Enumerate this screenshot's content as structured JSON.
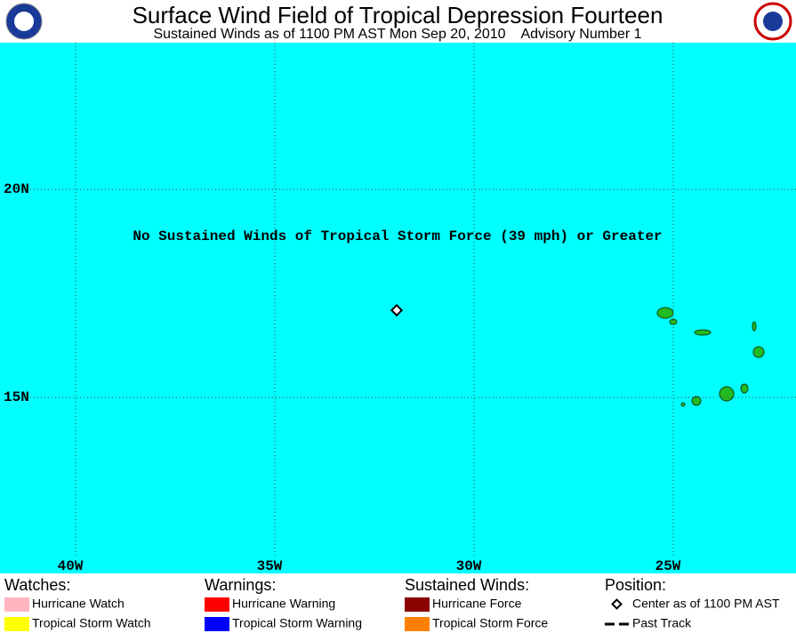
{
  "header": {
    "title": "Surface Wind Field of Tropical Depression Fourteen",
    "subtitle": "Sustained Winds as of 1100 PM AST Mon Sep 20, 2010    Advisory Number 1"
  },
  "map": {
    "notice": "No Sustained Winds of Tropical Storm Force (39 mph) or Greater",
    "lat_labels": [
      "20N",
      "15N"
    ],
    "lon_labels": [
      "40W",
      "35W",
      "30W",
      "25W"
    ],
    "ocean_color": "#00ffff",
    "land_color": "#22bb22"
  },
  "legend": [
    {
      "title": "Watches:",
      "items": [
        {
          "label": "Hurricane Watch",
          "color": "#ffb6c1"
        },
        {
          "label": "Tropical Storm Watch",
          "color": "#ffff00"
        }
      ]
    },
    {
      "title": "Warnings:",
      "items": [
        {
          "label": "Hurricane Warning",
          "color": "#ff0000"
        },
        {
          "label": "Tropical Storm Warning",
          "color": "#0000ff"
        }
      ]
    },
    {
      "title": "Sustained Winds:",
      "items": [
        {
          "label": "Hurricane Force",
          "color": "#8b0000"
        },
        {
          "label": "Tropical Storm Force",
          "color": "#ff8000"
        }
      ]
    },
    {
      "title": "Position:",
      "items": [
        {
          "label": "Center as of 1100 PM AST",
          "symbol": "diamond"
        },
        {
          "label": "Past Track",
          "symbol": "dash"
        }
      ]
    }
  ]
}
